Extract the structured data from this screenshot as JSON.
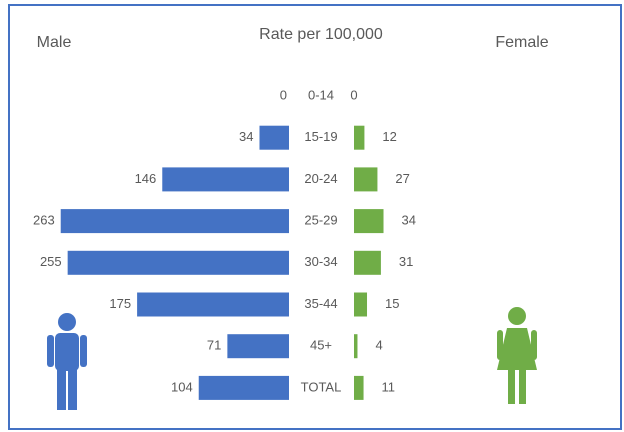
{
  "chart_data": {
    "type": "butterfly",
    "title": "Rate per 100,000",
    "categories": [
      "0-14",
      "15-19",
      "20-24",
      "25-29",
      "30-34",
      "35-44",
      "45+",
      "TOTAL"
    ],
    "series": [
      {
        "name": "Male",
        "color": "#4472c4",
        "values": [
          0,
          34,
          146,
          263,
          255,
          175,
          71,
          104
        ]
      },
      {
        "name": "Female",
        "color": "#70ad47",
        "values": [
          0,
          12,
          27,
          34,
          31,
          15,
          4,
          11
        ]
      }
    ]
  }
}
